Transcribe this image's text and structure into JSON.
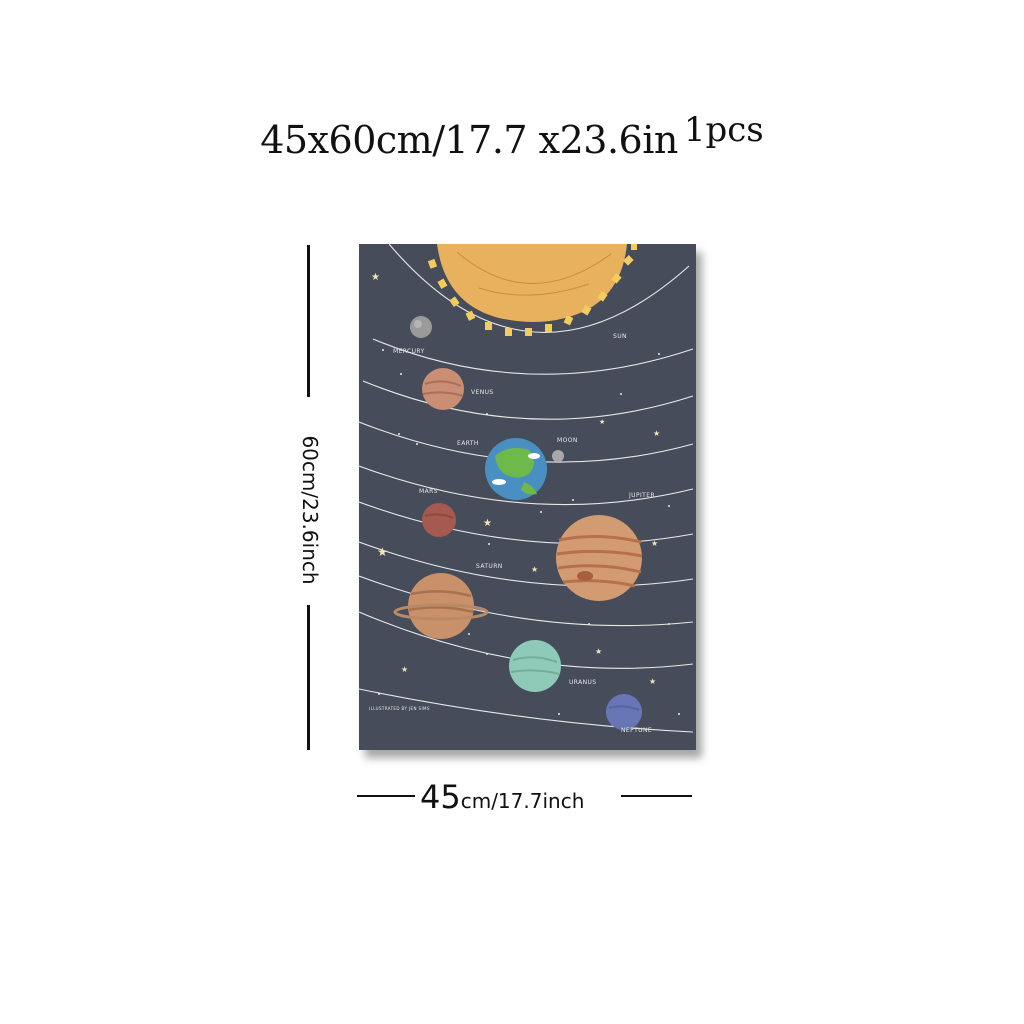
{
  "title": {
    "main": "45x60cm/17.7 x23.6in",
    "suffix": "1pcs"
  },
  "dimensions": {
    "height_label": "60cm/23.6inch",
    "width_big": "45",
    "width_rest": "cm/17.7inch"
  },
  "poster": {
    "background_color": "#464c59",
    "labels": {
      "sun": "SUN",
      "mercury": "MERCURY",
      "venus": "VENUS",
      "earth": "EARTH",
      "moon": "MOON",
      "mars": "MARS",
      "jupiter": "JUPITER",
      "saturn": "SATURN",
      "uranus": "URANUS",
      "neptune": "NEPTUNE",
      "credit": "ILLUSTRATED BY JEN SIMS"
    }
  }
}
